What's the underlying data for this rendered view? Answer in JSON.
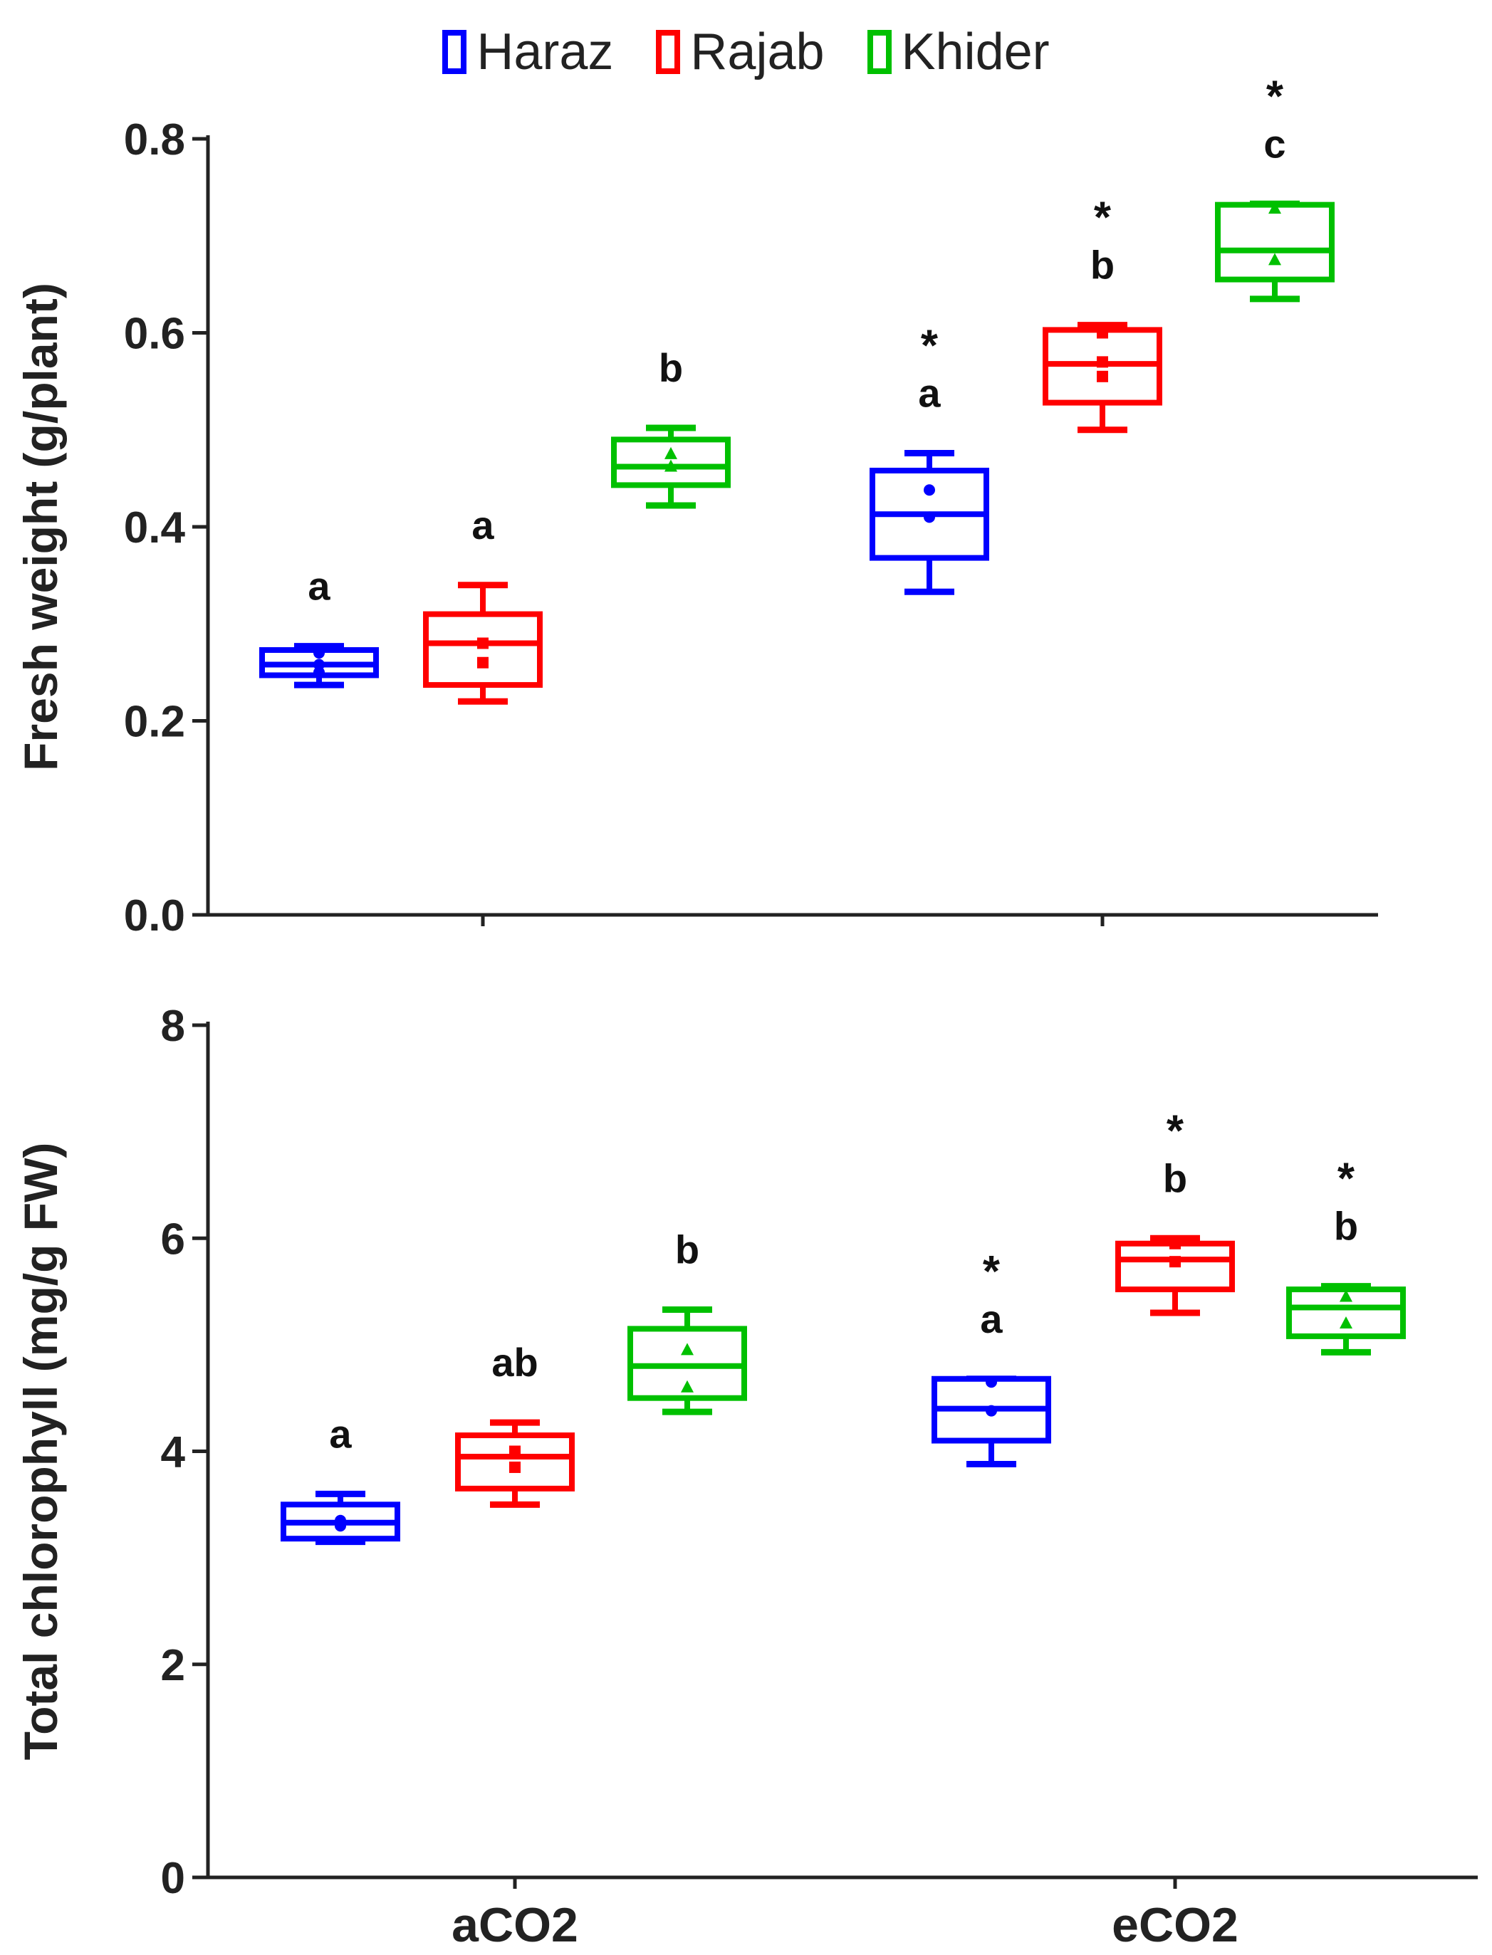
{
  "legend": [
    {
      "label": "Haraz",
      "color": "#0000FF"
    },
    {
      "label": "Rajab",
      "color": "#FF0000"
    },
    {
      "label": "Khider",
      "color": "#00C000"
    }
  ],
  "x_groups": [
    "aCO2",
    "eCO2"
  ],
  "chart_data": [
    {
      "type": "box",
      "ylabel": "Fresh weight (g/plant)",
      "ylim": [
        0,
        0.8
      ],
      "yticks": [
        "0.0",
        "0.2",
        "0.4",
        "0.6",
        "0.8"
      ],
      "groups": [
        "aCO2",
        "eCO2"
      ],
      "series": [
        {
          "name": "Haraz",
          "marker": "circle",
          "boxes": [
            {
              "group": "aCO2",
              "min": 0.237,
              "q1": 0.247,
              "median": 0.258,
              "q3": 0.273,
              "max": 0.277,
              "points": [
                0.27,
                0.25,
                0.258
              ],
              "label": "a",
              "star": false
            },
            {
              "group": "eCO2",
              "min": 0.333,
              "q1": 0.368,
              "median": 0.413,
              "q3": 0.458,
              "max": 0.476,
              "points": [
                0.438,
                0.41
              ],
              "label": "a",
              "star": true
            }
          ]
        },
        {
          "name": "Rajab",
          "marker": "square",
          "boxes": [
            {
              "group": "aCO2",
              "min": 0.22,
              "q1": 0.237,
              "median": 0.28,
              "q3": 0.31,
              "max": 0.34,
              "points": [
                0.28,
                0.26
              ],
              "label": "a",
              "star": false
            },
            {
              "group": "eCO2",
              "min": 0.5,
              "q1": 0.528,
              "median": 0.568,
              "q3": 0.603,
              "max": 0.608,
              "points": [
                0.6,
                0.555,
                0.57
              ],
              "label": "b",
              "star": true
            }
          ]
        },
        {
          "name": "Khider",
          "marker": "triangle",
          "boxes": [
            {
              "group": "aCO2",
              "min": 0.422,
              "q1": 0.443,
              "median": 0.462,
              "q3": 0.49,
              "max": 0.502,
              "points": [
                0.475,
                0.462
              ],
              "label": "b",
              "star": false
            },
            {
              "group": "eCO2",
              "min": 0.635,
              "q1": 0.655,
              "median": 0.685,
              "q3": 0.732,
              "max": 0.733,
              "points": [
                0.728,
                0.675
              ],
              "label": "c",
              "star": true
            }
          ]
        }
      ]
    },
    {
      "type": "box",
      "ylabel": "Total chlorophyll (mg/g FW)",
      "ylim": [
        0,
        8
      ],
      "yticks": [
        "0",
        "2",
        "4",
        "6",
        "8"
      ],
      "groups": [
        "aCO2",
        "eCO2"
      ],
      "series": [
        {
          "name": "Haraz",
          "marker": "circle",
          "boxes": [
            {
              "group": "aCO2",
              "min": 3.15,
              "q1": 3.18,
              "median": 3.33,
              "q3": 3.5,
              "max": 3.6,
              "points": [
                3.35,
                3.3
              ],
              "label": "a",
              "star": false
            },
            {
              "group": "eCO2",
              "min": 3.88,
              "q1": 4.1,
              "median": 4.4,
              "q3": 4.68,
              "max": 4.68,
              "points": [
                4.65,
                4.38
              ],
              "label": "a",
              "star": true
            }
          ]
        },
        {
          "name": "Rajab",
          "marker": "square",
          "boxes": [
            {
              "group": "aCO2",
              "min": 3.5,
              "q1": 3.65,
              "median": 3.95,
              "q3": 4.15,
              "max": 4.27,
              "points": [
                4.0,
                3.85
              ],
              "label": "ab",
              "star": false
            },
            {
              "group": "eCO2",
              "min": 5.3,
              "q1": 5.52,
              "median": 5.8,
              "q3": 5.95,
              "max": 6.0,
              "points": [
                5.95,
                5.78
              ],
              "label": "b",
              "star": true
            }
          ]
        },
        {
          "name": "Khider",
          "marker": "triangle",
          "boxes": [
            {
              "group": "aCO2",
              "min": 4.37,
              "q1": 4.5,
              "median": 4.8,
              "q3": 5.15,
              "max": 5.33,
              "points": [
                4.95,
                4.6
              ],
              "label": "b",
              "star": false
            },
            {
              "group": "eCO2",
              "min": 4.93,
              "q1": 5.08,
              "median": 5.35,
              "q3": 5.52,
              "max": 5.55,
              "points": [
                5.45,
                5.2
              ],
              "label": "b",
              "star": true
            }
          ]
        }
      ]
    }
  ]
}
